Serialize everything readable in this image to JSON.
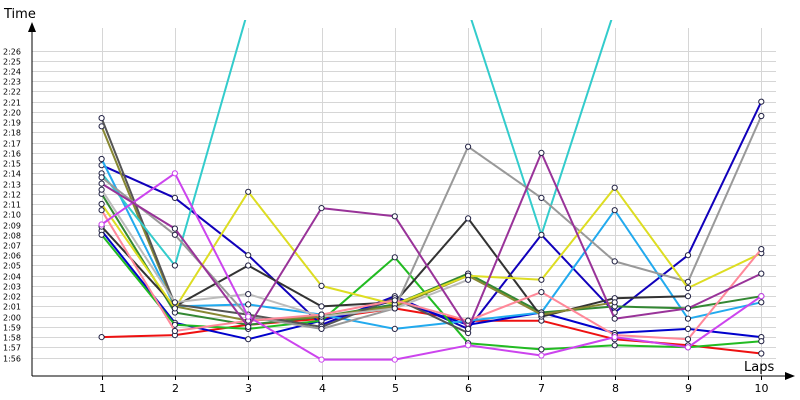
{
  "chart_data": {
    "type": "line",
    "xlabel": "Laps",
    "ylabel": "Time",
    "x": [
      1,
      2,
      3,
      4,
      5,
      6,
      7,
      8,
      9,
      10
    ],
    "xlim": [
      0.05,
      10.2
    ],
    "ylim": [
      "1:54.2",
      "2:28.2"
    ],
    "y_ticks": [
      "1:56",
      "1:57",
      "1:58",
      "1:59",
      "2:00",
      "2:01",
      "2:02",
      "2:03",
      "2:04",
      "2:05",
      "2:06",
      "2:07",
      "2:08",
      "2:09",
      "2:10",
      "2:11",
      "2:12",
      "2:13",
      "2:14",
      "2:15",
      "2:16",
      "2:17",
      "2:18",
      "2:19",
      "2:20",
      "2:21",
      "2:22",
      "2:23",
      "2:24",
      "2:25",
      "2:26"
    ],
    "grid": true,
    "legend": "none",
    "series": [
      {
        "color": "#ee1111",
        "values": [
          "1:58.0",
          "1:58.2",
          "1:59.2",
          "1:59.8",
          "2:00.8",
          "1:59.6",
          "1:59.6",
          "1:57.8",
          "1:57.2",
          "1:56.4"
        ]
      },
      {
        "color": "#1100bb",
        "values": [
          "2:14.8",
          "2:11.6",
          "2:06.0",
          "1:59.2",
          "2:02.0",
          "1:58.8",
          "2:08.0",
          "2:00.4",
          "2:06.0",
          "2:21.0"
        ]
      },
      {
        "color": "#0000cc",
        "values": [
          "2:08.4",
          "1:59.4",
          "1:57.8",
          "1:59.6",
          "2:01.6",
          "1:59.2",
          "2:00.4",
          "1:58.4",
          "1:58.8",
          "1:58.0"
        ]
      },
      {
        "color": "#22aaee",
        "values": [
          "2:15.4",
          "2:01.0",
          "2:01.2",
          "2:00.2",
          "1:58.8",
          "1:59.6",
          "2:00.4",
          "2:10.4",
          "1:59.8",
          "2:01.4"
        ]
      },
      {
        "color": "#22bb22",
        "values": [
          "2:08.0",
          "1:59.2",
          "1:58.8",
          "1:59.6",
          "2:05.8",
          "1:57.4",
          "1:56.8",
          "1:57.2",
          "1:57.0",
          "1:57.6"
        ]
      },
      {
        "color": "#338833",
        "values": [
          "2:12.0",
          "2:00.4",
          "1:59.2",
          "2:00.0",
          "2:01.2",
          "2:04.2",
          "2:00.4",
          "2:01.0",
          "2:00.8",
          "2:02.0"
        ]
      },
      {
        "color": "#333333",
        "values": [
          "2:08.8",
          "2:01.0",
          "2:05.0",
          "2:01.0",
          "2:01.4",
          "2:09.6",
          "2:00.0",
          "2:01.8",
          "2:02.0",
          null
        ]
      },
      {
        "color": "#888833",
        "values": [
          "2:18.6",
          "2:01.0",
          "1:59.6",
          "2:00.0",
          "2:01.0",
          "2:04.0",
          "2:00.2",
          "2:01.4",
          null,
          null
        ]
      },
      {
        "color": "#555555",
        "values": [
          "2:19.4",
          "2:01.2",
          "2:00.2",
          "1:59.0",
          "2:01.8",
          "1:58.4",
          null,
          null,
          null,
          null
        ]
      },
      {
        "color": "#33cccc",
        "values": [
          "2:14.0",
          "2:05.0",
          "2:30.0",
          null,
          null,
          "2:30.0",
          "2:08.0",
          "2:30.0",
          null,
          null
        ]
      },
      {
        "color": "#999999",
        "values": [
          "2:13.6",
          "2:08.0",
          "2:00.0",
          "1:58.8",
          "2:00.8",
          "2:16.6",
          "2:11.6",
          "2:05.4",
          "2:03.4",
          "2:19.6"
        ]
      },
      {
        "color": "#dddd22",
        "values": [
          "2:11.0",
          "2:00.8",
          "2:12.2",
          "2:03.0",
          "2:01.2",
          "2:04.0",
          "2:03.6",
          "2:12.6",
          "2:02.8",
          "2:06.2"
        ]
      },
      {
        "color": "#bbbbbb",
        "values": [
          "2:12.4",
          "2:01.4",
          "2:02.2",
          "2:00.0",
          "2:00.8",
          "2:03.6",
          null,
          null,
          null,
          null
        ]
      },
      {
        "color": "#ff8899",
        "values": [
          "2:10.4",
          "1:58.6",
          "1:59.6",
          "2:00.2",
          "2:01.6",
          "1:59.6",
          "2:02.4",
          "1:58.2",
          "1:57.8",
          "2:06.6"
        ]
      },
      {
        "color": "#cc44ee",
        "values": [
          "2:09.0",
          "2:14.0",
          "2:00.0",
          "1:55.8",
          "1:55.8",
          "1:57.2",
          "1:56.2",
          "1:58.0",
          "1:57.0",
          "2:02.0"
        ]
      },
      {
        "color": "#993399",
        "values": [
          "2:13.0",
          "2:08.6",
          "1:59.0",
          "2:10.6",
          "2:09.8",
          "1:58.8",
          "2:16.0",
          "1:59.8",
          "2:00.8",
          "2:04.2"
        ]
      }
    ]
  }
}
